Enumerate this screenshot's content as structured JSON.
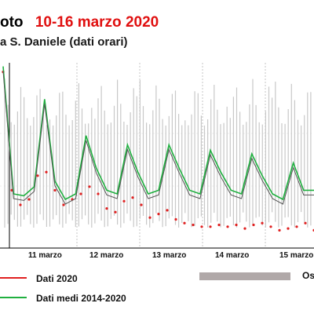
{
  "header": {
    "title_part": "oto",
    "title_date": "10-16 marzo 2020",
    "subtitle": "a S. Daniele (dati orari)"
  },
  "legend": {
    "dati_2020": "Dati 2020",
    "dati_medi": "Dati medi 2014-2020",
    "gray_partial": "Os"
  },
  "colors": {
    "series_2020": "#e02020",
    "series_mean": "#20b040",
    "series_dark": "#555555",
    "range_bars": "#c8c8c8",
    "title_accent": "#e01010"
  },
  "chart_data": {
    "type": "line",
    "day_labels": [
      "11 marzo",
      "12 marzo",
      "13 marzo",
      "14 marzo",
      "15 marzo"
    ],
    "ylim": [
      0,
      100
    ],
    "series": [
      {
        "name": "Dati 2020",
        "style": "dots",
        "values": [
          95,
          30,
          22,
          25,
          38,
          40,
          30,
          22,
          25,
          28,
          32,
          28,
          20,
          18,
          24,
          26,
          22,
          15,
          17,
          19,
          14,
          12,
          11,
          10,
          10,
          11,
          10,
          11,
          9,
          11,
          12,
          10,
          8,
          9,
          10,
          12,
          8
        ]
      },
      {
        "name": "Dati medi 2014-2020",
        "style": "line",
        "values": [
          98,
          28,
          27,
          32,
          80,
          35,
          25,
          28,
          60,
          42,
          30,
          28,
          55,
          40,
          28,
          30,
          55,
          42,
          30,
          28,
          52,
          40,
          30,
          28,
          50,
          38,
          28,
          25,
          45,
          30,
          30
        ]
      }
    ]
  }
}
